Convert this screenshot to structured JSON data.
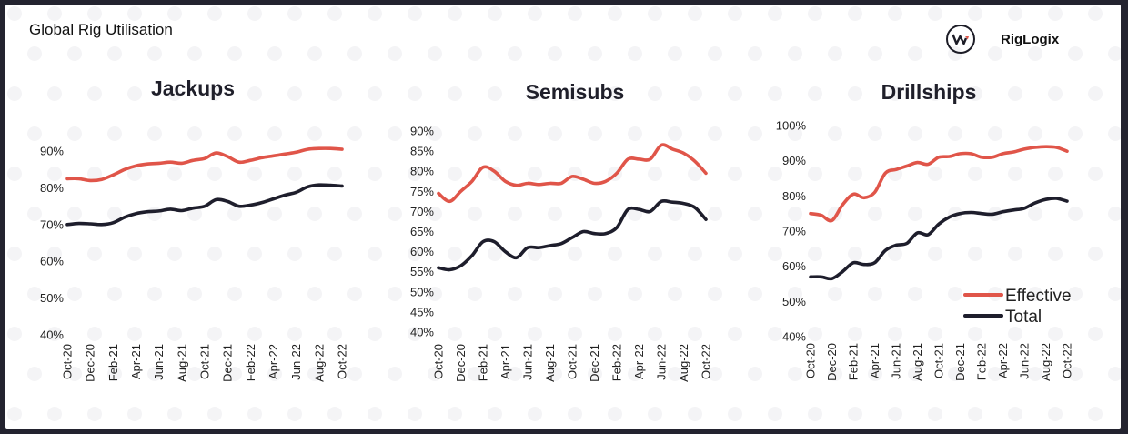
{
  "page": {
    "title": "Global Rig Utilisation",
    "brand": "RigLogix",
    "colors": {
      "effective": "#e05549",
      "total": "#1e1e2c",
      "background": "#ffffff",
      "frame": "#23232f"
    }
  },
  "legend": {
    "items": [
      {
        "label": "Effective",
        "color": "#e05549"
      },
      {
        "label": "Total",
        "color": "#1e1e2c"
      }
    ]
  },
  "chart_data": [
    {
      "type": "line",
      "title": "Jackups",
      "x": [
        "Oct-20",
        "Nov-20",
        "Dec-20",
        "Jan-21",
        "Feb-21",
        "Mar-21",
        "Apr-21",
        "May-21",
        "Jun-21",
        "Jul-21",
        "Aug-21",
        "Sep-21",
        "Oct-21",
        "Nov-21",
        "Dec-21",
        "Jan-22",
        "Feb-22",
        "Mar-22",
        "Apr-22",
        "May-22",
        "Jun-22",
        "Jul-22",
        "Aug-22",
        "Sep-22",
        "Oct-22"
      ],
      "x_tick_labels": [
        "Oct-20",
        "Dec-20",
        "Feb-21",
        "Apr-21",
        "Jun-21",
        "Aug-21",
        "Oct-21",
        "Dec-21",
        "Feb-22",
        "Apr-22",
        "Jun-22",
        "Aug-22",
        "Oct-22"
      ],
      "y_tick_labels": [
        "40%",
        "50%",
        "60%",
        "70%",
        "80%",
        "90%"
      ],
      "ylim": [
        40,
        92
      ],
      "y_ticks": [
        40,
        50,
        60,
        70,
        80,
        90
      ],
      "y_unit": "%",
      "series": [
        {
          "name": "Effective",
          "values": [
            82.5,
            82.5,
            82,
            82.3,
            83.5,
            85,
            86,
            86.5,
            86.7,
            87,
            86.7,
            87.5,
            88,
            89.5,
            88.5,
            87,
            87.5,
            88.2,
            88.7,
            89.2,
            89.7,
            90.5,
            90.7,
            90.7,
            90.5
          ]
        },
        {
          "name": "Total",
          "values": [
            70,
            70.3,
            70.2,
            70,
            70.5,
            72,
            73,
            73.5,
            73.7,
            74.2,
            73.8,
            74.5,
            75,
            76.8,
            76.3,
            75,
            75.3,
            76,
            77,
            78,
            78.8,
            80.3,
            80.8,
            80.7,
            80.5
          ]
        }
      ]
    },
    {
      "type": "line",
      "title": "Semisubs",
      "x": [
        "Oct-20",
        "Nov-20",
        "Dec-20",
        "Jan-21",
        "Feb-21",
        "Mar-21",
        "Apr-21",
        "May-21",
        "Jun-21",
        "Jul-21",
        "Aug-21",
        "Sep-21",
        "Oct-21",
        "Nov-21",
        "Dec-21",
        "Jan-22",
        "Feb-22",
        "Mar-22",
        "Apr-22",
        "May-22",
        "Jun-22",
        "Jul-22",
        "Aug-22",
        "Sep-22",
        "Oct-22"
      ],
      "x_tick_labels": [
        "Oct-20",
        "Dec-20",
        "Feb-21",
        "Apr-21",
        "Jun-21",
        "Aug-21",
        "Oct-21",
        "Dec-21",
        "Feb-22",
        "Apr-22",
        "Jun-22",
        "Aug-22",
        "Oct-22"
      ],
      "y_tick_labels": [
        "40%",
        "45%",
        "50%",
        "55%",
        "60%",
        "65%",
        "70%",
        "75%",
        "80%",
        "85%",
        "90%"
      ],
      "ylim": [
        40,
        90
      ],
      "y_ticks": [
        40,
        45,
        50,
        55,
        60,
        65,
        70,
        75,
        80,
        85,
        90
      ],
      "y_unit": "%",
      "series": [
        {
          "name": "Effective",
          "values": [
            74.5,
            72.5,
            75,
            77.5,
            81,
            80,
            77.5,
            76.5,
            77,
            76.7,
            77,
            77,
            78.7,
            78,
            77,
            77.5,
            79.5,
            83,
            83,
            83,
            86.5,
            85.5,
            84.5,
            82.5,
            79.5
          ]
        },
        {
          "name": "Total",
          "values": [
            56,
            55.5,
            56.5,
            59,
            62.5,
            62.5,
            60,
            58.5,
            61,
            61,
            61.5,
            62,
            63.5,
            65,
            64.5,
            64.5,
            66,
            70.5,
            70.5,
            70,
            72.5,
            72.3,
            72,
            71,
            68
          ]
        }
      ]
    },
    {
      "type": "line",
      "title": "Drillships",
      "x": [
        "Oct-20",
        "Nov-20",
        "Dec-20",
        "Jan-21",
        "Feb-21",
        "Mar-21",
        "Apr-21",
        "May-21",
        "Jun-21",
        "Jul-21",
        "Aug-21",
        "Sep-21",
        "Oct-21",
        "Nov-21",
        "Dec-21",
        "Jan-22",
        "Feb-22",
        "Mar-22",
        "Apr-22",
        "May-22",
        "Jun-22",
        "Jul-22",
        "Aug-22",
        "Sep-22",
        "Oct-22"
      ],
      "x_tick_labels": [
        "Oct-20",
        "Dec-20",
        "Feb-21",
        "Apr-21",
        "Jun-21",
        "Aug-21",
        "Oct-21",
        "Dec-21",
        "Feb-22",
        "Apr-22",
        "Jun-22",
        "Aug-22",
        "Oct-22"
      ],
      "y_tick_labels": [
        "40%",
        "50%",
        "60%",
        "70%",
        "80%",
        "90%",
        "100%"
      ],
      "ylim": [
        40,
        100
      ],
      "y_ticks": [
        40,
        50,
        60,
        70,
        80,
        90,
        100
      ],
      "y_unit": "%",
      "series": [
        {
          "name": "Effective",
          "values": [
            75,
            74.5,
            73,
            77.5,
            80.5,
            79.5,
            81,
            86.5,
            87.5,
            88.5,
            89.5,
            89,
            91,
            91.2,
            92,
            92,
            91,
            91,
            92,
            92.5,
            93.3,
            93.8,
            94,
            93.8,
            92.7
          ]
        },
        {
          "name": "Total",
          "values": [
            57,
            57,
            56.5,
            58.5,
            61,
            60.5,
            61,
            64.5,
            66,
            66.5,
            69.5,
            69,
            72,
            74,
            75,
            75.3,
            75,
            74.8,
            75.5,
            76,
            76.5,
            78,
            79,
            79.3,
            78.5
          ]
        }
      ]
    }
  ]
}
